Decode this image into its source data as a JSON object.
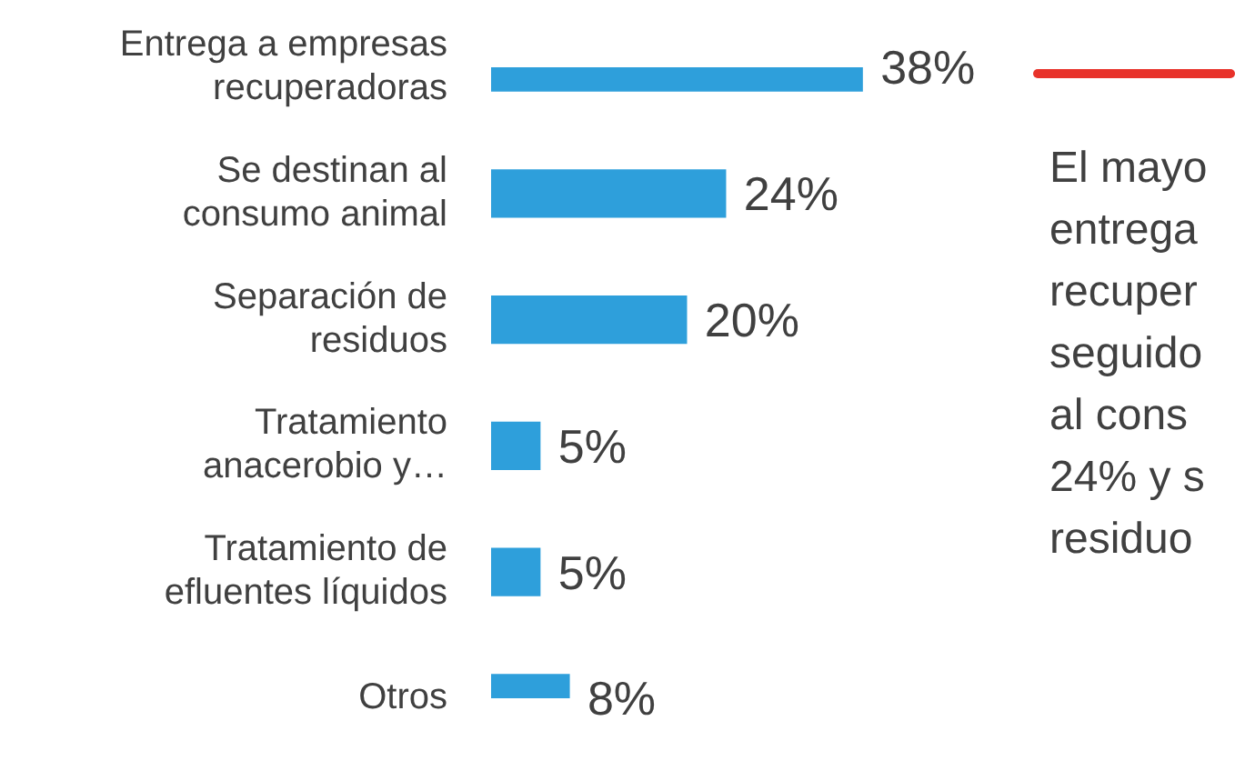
{
  "chart_data": {
    "type": "bar",
    "orientation": "horizontal",
    "categories": [
      "Entrega a empresas recuperadoras",
      "Se destinan al consumo animal",
      "Separación de residuos",
      "Tratamiento anacerobio y…",
      "Tratamiento de efluentes líquidos",
      "Otros"
    ],
    "values": [
      38,
      24,
      20,
      5,
      5,
      8
    ],
    "value_labels": [
      "38%",
      "24%",
      "20%",
      "5%",
      "5%",
      "8%"
    ],
    "color": "#2e9fdb",
    "annotations": [
      "El mayo\nentrega\nrecuper\nseguido\nal cons\n24% y s\nresiduo"
    ],
    "legend": false
  }
}
